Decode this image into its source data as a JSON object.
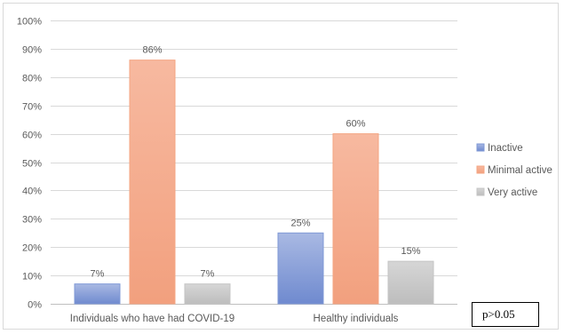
{
  "chart_data": {
    "type": "bar",
    "categories": [
      "Individuals who have had COVID-19",
      "Healthy individuals"
    ],
    "series": [
      {
        "name": "Inactive",
        "values": [
          7,
          25
        ],
        "labels": [
          "7%",
          "25%"
        ],
        "color": "#7f98d6"
      },
      {
        "name": "Minimal active",
        "values": [
          86,
          60
        ],
        "labels": [
          "86%",
          "60%"
        ],
        "color": "#f4a582"
      },
      {
        "name": "Very active",
        "values": [
          7,
          15
        ],
        "labels": [
          "7%",
          "15%"
        ],
        "color": "#c4c4c4"
      }
    ],
    "y_ticks": [
      "0%",
      "10%",
      "20%",
      "30%",
      "40%",
      "50%",
      "60%",
      "70%",
      "80%",
      "90%",
      "100%"
    ],
    "ylim": [
      0,
      100
    ],
    "grid": true,
    "legend_position": "right",
    "annotation": "p>0.05"
  }
}
